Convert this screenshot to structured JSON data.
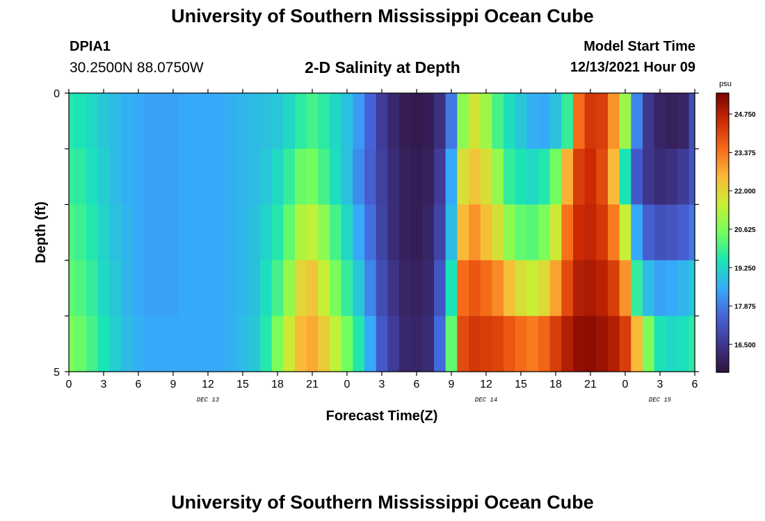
{
  "header": {
    "title": "University of Southern Mississippi Ocean Cube",
    "station": "DPIA1",
    "coords": "30.2500N  88.0750W",
    "subtitle": "2-D Salinity at Depth",
    "model_start_label": "Model Start Time",
    "model_start_value": "12/13/2021 Hour 09"
  },
  "footer": {
    "title": "University of Southern Mississippi Ocean Cube"
  },
  "chart_data": {
    "type": "heatmap",
    "title": "2-D Salinity at Depth",
    "xlabel": "Forecast Time(Z)",
    "ylabel": "Depth (ft)",
    "ylim": [
      0,
      5
    ],
    "y_ticks": [
      0,
      1,
      2,
      3,
      4,
      5
    ],
    "y_tick_labels": [
      "0",
      "",
      "",
      "",
      "",
      "5"
    ],
    "x_range_hours": [
      0,
      54
    ],
    "x_tick_hours": [
      0,
      3,
      6,
      9,
      12,
      15,
      18,
      21,
      24,
      27,
      30,
      33,
      36,
      39,
      42,
      45,
      48,
      51,
      54
    ],
    "x_tick_labels": [
      "0",
      "3",
      "6",
      "9",
      "12",
      "15",
      "18",
      "21",
      "0",
      "3",
      "6",
      "9",
      "12",
      "15",
      "18",
      "21",
      "0",
      "3",
      "6"
    ],
    "date_labels": [
      {
        "hour": 12,
        "text": "DEC 13"
      },
      {
        "hour": 36,
        "text": "DEC 14"
      },
      {
        "hour": 51,
        "text": "DEC 15"
      }
    ],
    "colorbar": {
      "unit": "psu",
      "min": 15.5,
      "max": 25.5,
      "ticks": [
        16.5,
        17.875,
        19.25,
        20.625,
        22.0,
        23.375,
        24.75
      ],
      "tick_labels": [
        "16.500",
        "17.875",
        "19.250",
        "20.625",
        "22.000",
        "23.375",
        "24.750"
      ],
      "stops": [
        "#30123b",
        "#3e378f",
        "#4662d7",
        "#36aaf9",
        "#1ae4b6",
        "#72fe5e",
        "#c7ef34",
        "#faba39",
        "#f66b19",
        "#cb2a04",
        "#7a0403"
      ]
    },
    "depth_rows": [
      0.5,
      1.5,
      2.5,
      3.5,
      4.5
    ],
    "time_hours": [
      0,
      1,
      2,
      3,
      4,
      5,
      6,
      7,
      8,
      9,
      10,
      11,
      12,
      13,
      14,
      15,
      16,
      17,
      18,
      19,
      20,
      21,
      22,
      23,
      24,
      25,
      26,
      27,
      28,
      29,
      30,
      31,
      32,
      33,
      34,
      35,
      36,
      37,
      38,
      39,
      40,
      41,
      42,
      43,
      44,
      45,
      46,
      47,
      48,
      49,
      50,
      51,
      52,
      53,
      54
    ],
    "salinity": [
      [
        19.6,
        19.5,
        19.3,
        19.0,
        18.8,
        18.6,
        18.5,
        18.4,
        18.4,
        18.4,
        18.5,
        18.5,
        18.5,
        18.5,
        18.6,
        18.7,
        18.8,
        18.9,
        19.0,
        19.3,
        19.7,
        20.0,
        19.7,
        19.3,
        18.9,
        18.3,
        17.5,
        16.6,
        16.1,
        15.8,
        15.7,
        15.8,
        16.3,
        17.8,
        20.8,
        21.7,
        21.0,
        20.0,
        19.4,
        19.0,
        18.6,
        18.5,
        18.9,
        19.8,
        23.5,
        24.3,
        24.2,
        23.0,
        21.0,
        18.0,
        16.5,
        16.0,
        15.9,
        16.0,
        17.0
      ],
      [
        19.8,
        19.7,
        19.4,
        19.1,
        18.8,
        18.6,
        18.5,
        18.4,
        18.4,
        18.4,
        18.5,
        18.5,
        18.5,
        18.5,
        18.6,
        18.7,
        18.8,
        19.0,
        19.3,
        19.8,
        20.4,
        20.5,
        20.0,
        19.4,
        18.9,
        18.1,
        17.4,
        16.7,
        16.2,
        15.9,
        15.8,
        15.9,
        16.6,
        18.5,
        21.8,
        22.3,
        21.8,
        20.9,
        19.8,
        19.5,
        19.3,
        19.6,
        20.5,
        22.6,
        24.2,
        24.5,
        24.0,
        22.5,
        19.5,
        17.3,
        16.5,
        16.2,
        16.3,
        16.6,
        17.2
      ],
      [
        20.1,
        19.9,
        19.6,
        19.2,
        18.9,
        18.7,
        18.5,
        18.4,
        18.4,
        18.4,
        18.5,
        18.5,
        18.5,
        18.5,
        18.6,
        18.7,
        18.9,
        19.2,
        19.6,
        20.3,
        21.2,
        21.4,
        20.8,
        20.0,
        19.3,
        18.5,
        17.7,
        16.8,
        16.2,
        15.9,
        15.8,
        16.0,
        16.8,
        18.8,
        22.5,
        23.0,
        22.4,
        21.8,
        20.8,
        20.3,
        20.2,
        20.6,
        21.6,
        23.4,
        24.5,
        24.6,
        24.3,
        23.3,
        21.5,
        18.5,
        17.4,
        17.1,
        17.2,
        17.4,
        17.8
      ],
      [
        20.3,
        20.1,
        19.8,
        19.3,
        19.0,
        18.7,
        18.5,
        18.4,
        18.4,
        18.4,
        18.5,
        18.5,
        18.5,
        18.5,
        18.6,
        18.7,
        18.9,
        19.4,
        20.0,
        20.9,
        22.0,
        22.3,
        21.5,
        20.6,
        19.8,
        19.0,
        18.0,
        17.0,
        16.4,
        16.0,
        15.9,
        16.1,
        17.2,
        19.5,
        23.5,
        23.8,
        23.5,
        23.1,
        22.4,
        21.8,
        21.5,
        21.9,
        22.8,
        24.0,
        24.8,
        24.9,
        24.7,
        24.2,
        23.0,
        19.8,
        18.8,
        18.4,
        18.5,
        18.7,
        19.0
      ],
      [
        20.6,
        20.4,
        20.0,
        19.5,
        19.1,
        18.8,
        18.6,
        18.5,
        18.5,
        18.5,
        18.5,
        18.5,
        18.5,
        18.5,
        18.6,
        18.8,
        19.0,
        19.6,
        20.6,
        21.6,
        22.5,
        22.7,
        22.2,
        21.4,
        20.5,
        19.6,
        18.5,
        17.3,
        16.6,
        16.1,
        16.0,
        16.2,
        17.6,
        20.3,
        24.0,
        24.3,
        24.2,
        24.1,
        23.8,
        23.5,
        23.3,
        23.6,
        24.2,
        24.8,
        25.2,
        25.3,
        25.1,
        24.8,
        24.2,
        22.5,
        20.6,
        19.5,
        19.3,
        19.4,
        19.7
      ]
    ]
  }
}
